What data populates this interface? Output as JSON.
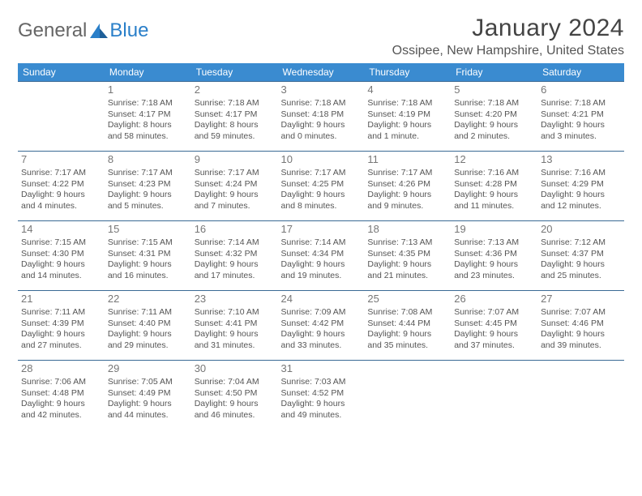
{
  "logo": {
    "text1": "General",
    "text2": "Blue"
  },
  "title": "January 2024",
  "location": "Ossipee, New Hampshire, United States",
  "header_bg": "#3a8bd0",
  "header_fg": "#ffffff",
  "row_border": "#3a6a95",
  "text_color": "#555555",
  "daynum_color": "#777777",
  "weekdays": [
    "Sunday",
    "Monday",
    "Tuesday",
    "Wednesday",
    "Thursday",
    "Friday",
    "Saturday"
  ],
  "weeks": [
    [
      null,
      {
        "d": "1",
        "sr": "Sunrise: 7:18 AM",
        "ss": "Sunset: 4:17 PM",
        "dl1": "Daylight: 8 hours",
        "dl2": "and 58 minutes."
      },
      {
        "d": "2",
        "sr": "Sunrise: 7:18 AM",
        "ss": "Sunset: 4:17 PM",
        "dl1": "Daylight: 8 hours",
        "dl2": "and 59 minutes."
      },
      {
        "d": "3",
        "sr": "Sunrise: 7:18 AM",
        "ss": "Sunset: 4:18 PM",
        "dl1": "Daylight: 9 hours",
        "dl2": "and 0 minutes."
      },
      {
        "d": "4",
        "sr": "Sunrise: 7:18 AM",
        "ss": "Sunset: 4:19 PM",
        "dl1": "Daylight: 9 hours",
        "dl2": "and 1 minute."
      },
      {
        "d": "5",
        "sr": "Sunrise: 7:18 AM",
        "ss": "Sunset: 4:20 PM",
        "dl1": "Daylight: 9 hours",
        "dl2": "and 2 minutes."
      },
      {
        "d": "6",
        "sr": "Sunrise: 7:18 AM",
        "ss": "Sunset: 4:21 PM",
        "dl1": "Daylight: 9 hours",
        "dl2": "and 3 minutes."
      }
    ],
    [
      {
        "d": "7",
        "sr": "Sunrise: 7:17 AM",
        "ss": "Sunset: 4:22 PM",
        "dl1": "Daylight: 9 hours",
        "dl2": "and 4 minutes."
      },
      {
        "d": "8",
        "sr": "Sunrise: 7:17 AM",
        "ss": "Sunset: 4:23 PM",
        "dl1": "Daylight: 9 hours",
        "dl2": "and 5 minutes."
      },
      {
        "d": "9",
        "sr": "Sunrise: 7:17 AM",
        "ss": "Sunset: 4:24 PM",
        "dl1": "Daylight: 9 hours",
        "dl2": "and 7 minutes."
      },
      {
        "d": "10",
        "sr": "Sunrise: 7:17 AM",
        "ss": "Sunset: 4:25 PM",
        "dl1": "Daylight: 9 hours",
        "dl2": "and 8 minutes."
      },
      {
        "d": "11",
        "sr": "Sunrise: 7:17 AM",
        "ss": "Sunset: 4:26 PM",
        "dl1": "Daylight: 9 hours",
        "dl2": "and 9 minutes."
      },
      {
        "d": "12",
        "sr": "Sunrise: 7:16 AM",
        "ss": "Sunset: 4:28 PM",
        "dl1": "Daylight: 9 hours",
        "dl2": "and 11 minutes."
      },
      {
        "d": "13",
        "sr": "Sunrise: 7:16 AM",
        "ss": "Sunset: 4:29 PM",
        "dl1": "Daylight: 9 hours",
        "dl2": "and 12 minutes."
      }
    ],
    [
      {
        "d": "14",
        "sr": "Sunrise: 7:15 AM",
        "ss": "Sunset: 4:30 PM",
        "dl1": "Daylight: 9 hours",
        "dl2": "and 14 minutes."
      },
      {
        "d": "15",
        "sr": "Sunrise: 7:15 AM",
        "ss": "Sunset: 4:31 PM",
        "dl1": "Daylight: 9 hours",
        "dl2": "and 16 minutes."
      },
      {
        "d": "16",
        "sr": "Sunrise: 7:14 AM",
        "ss": "Sunset: 4:32 PM",
        "dl1": "Daylight: 9 hours",
        "dl2": "and 17 minutes."
      },
      {
        "d": "17",
        "sr": "Sunrise: 7:14 AM",
        "ss": "Sunset: 4:34 PM",
        "dl1": "Daylight: 9 hours",
        "dl2": "and 19 minutes."
      },
      {
        "d": "18",
        "sr": "Sunrise: 7:13 AM",
        "ss": "Sunset: 4:35 PM",
        "dl1": "Daylight: 9 hours",
        "dl2": "and 21 minutes."
      },
      {
        "d": "19",
        "sr": "Sunrise: 7:13 AM",
        "ss": "Sunset: 4:36 PM",
        "dl1": "Daylight: 9 hours",
        "dl2": "and 23 minutes."
      },
      {
        "d": "20",
        "sr": "Sunrise: 7:12 AM",
        "ss": "Sunset: 4:37 PM",
        "dl1": "Daylight: 9 hours",
        "dl2": "and 25 minutes."
      }
    ],
    [
      {
        "d": "21",
        "sr": "Sunrise: 7:11 AM",
        "ss": "Sunset: 4:39 PM",
        "dl1": "Daylight: 9 hours",
        "dl2": "and 27 minutes."
      },
      {
        "d": "22",
        "sr": "Sunrise: 7:11 AM",
        "ss": "Sunset: 4:40 PM",
        "dl1": "Daylight: 9 hours",
        "dl2": "and 29 minutes."
      },
      {
        "d": "23",
        "sr": "Sunrise: 7:10 AM",
        "ss": "Sunset: 4:41 PM",
        "dl1": "Daylight: 9 hours",
        "dl2": "and 31 minutes."
      },
      {
        "d": "24",
        "sr": "Sunrise: 7:09 AM",
        "ss": "Sunset: 4:42 PM",
        "dl1": "Daylight: 9 hours",
        "dl2": "and 33 minutes."
      },
      {
        "d": "25",
        "sr": "Sunrise: 7:08 AM",
        "ss": "Sunset: 4:44 PM",
        "dl1": "Daylight: 9 hours",
        "dl2": "and 35 minutes."
      },
      {
        "d": "26",
        "sr": "Sunrise: 7:07 AM",
        "ss": "Sunset: 4:45 PM",
        "dl1": "Daylight: 9 hours",
        "dl2": "and 37 minutes."
      },
      {
        "d": "27",
        "sr": "Sunrise: 7:07 AM",
        "ss": "Sunset: 4:46 PM",
        "dl1": "Daylight: 9 hours",
        "dl2": "and 39 minutes."
      }
    ],
    [
      {
        "d": "28",
        "sr": "Sunrise: 7:06 AM",
        "ss": "Sunset: 4:48 PM",
        "dl1": "Daylight: 9 hours",
        "dl2": "and 42 minutes."
      },
      {
        "d": "29",
        "sr": "Sunrise: 7:05 AM",
        "ss": "Sunset: 4:49 PM",
        "dl1": "Daylight: 9 hours",
        "dl2": "and 44 minutes."
      },
      {
        "d": "30",
        "sr": "Sunrise: 7:04 AM",
        "ss": "Sunset: 4:50 PM",
        "dl1": "Daylight: 9 hours",
        "dl2": "and 46 minutes."
      },
      {
        "d": "31",
        "sr": "Sunrise: 7:03 AM",
        "ss": "Sunset: 4:52 PM",
        "dl1": "Daylight: 9 hours",
        "dl2": "and 49 minutes."
      },
      null,
      null,
      null
    ]
  ]
}
